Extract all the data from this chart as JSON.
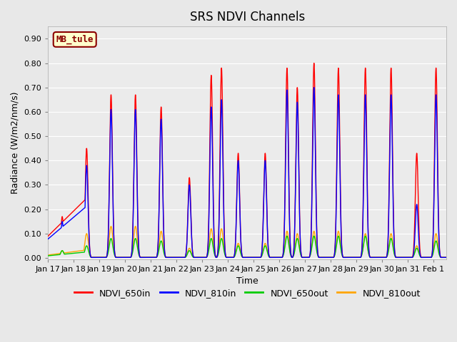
{
  "title": "SRS NDVI Channels",
  "ylabel": "Radiance (W/m2/nm/s)",
  "xlabel": "Time",
  "ylim": [
    -0.005,
    0.95
  ],
  "yticks": [
    0.0,
    0.1,
    0.2,
    0.3,
    0.4,
    0.5,
    0.6,
    0.7,
    0.8,
    0.9
  ],
  "annotation_text": "MB_tule",
  "annotation_color": "#8B0000",
  "annotation_bg": "#FFFFCC",
  "line_colors": {
    "NDVI_650in": "#FF0000",
    "NDVI_810in": "#0000FF",
    "NDVI_650out": "#00CC00",
    "NDVI_810out": "#FFA500"
  },
  "line_widths": {
    "NDVI_650in": 1.0,
    "NDVI_810in": 1.0,
    "NDVI_650out": 1.0,
    "NDVI_810out": 1.0
  },
  "bg_color": "#E8E8E8",
  "plot_bg_color": "#EBEBEB",
  "title_fontsize": 12,
  "label_fontsize": 9,
  "tick_fontsize": 8,
  "legend_fontsize": 9,
  "peak_times": [
    17.55,
    18.5,
    19.45,
    20.4,
    21.4,
    22.5,
    23.35,
    23.75,
    24.4,
    25.45,
    26.3,
    26.7,
    27.35,
    28.3,
    29.35,
    30.35,
    31.35,
    32.1
  ],
  "ph_650in": [
    0.17,
    0.45,
    0.67,
    0.67,
    0.62,
    0.33,
    0.75,
    0.78,
    0.43,
    0.43,
    0.78,
    0.7,
    0.8,
    0.78,
    0.78,
    0.78,
    0.43,
    0.78
  ],
  "ph_810in": [
    0.15,
    0.38,
    0.61,
    0.61,
    0.57,
    0.3,
    0.62,
    0.65,
    0.4,
    0.4,
    0.69,
    0.64,
    0.7,
    0.67,
    0.67,
    0.67,
    0.22,
    0.67
  ],
  "ph_650out": [
    0.03,
    0.05,
    0.08,
    0.08,
    0.07,
    0.03,
    0.08,
    0.08,
    0.05,
    0.05,
    0.09,
    0.08,
    0.09,
    0.09,
    0.09,
    0.08,
    0.04,
    0.07
  ],
  "ph_810out": [
    0.03,
    0.1,
    0.13,
    0.13,
    0.11,
    0.04,
    0.12,
    0.12,
    0.06,
    0.06,
    0.11,
    0.1,
    0.11,
    0.11,
    0.1,
    0.1,
    0.05,
    0.1
  ],
  "sigma_in": 0.055,
  "sigma_out": 0.07,
  "base_in": 0.002,
  "base_out": 0.002
}
